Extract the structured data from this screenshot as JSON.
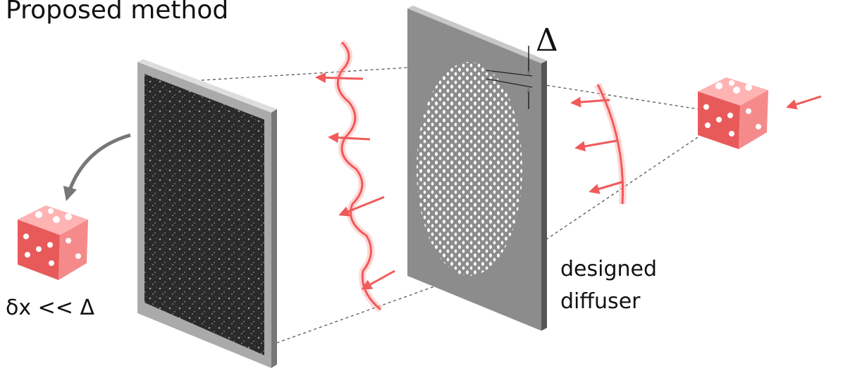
{
  "header": {
    "title": "Proposed method"
  },
  "labels": {
    "delta": "Δ",
    "diffuser": [
      "designed",
      "diffuser"
    ],
    "resolution": "δx << Δ"
  }
}
